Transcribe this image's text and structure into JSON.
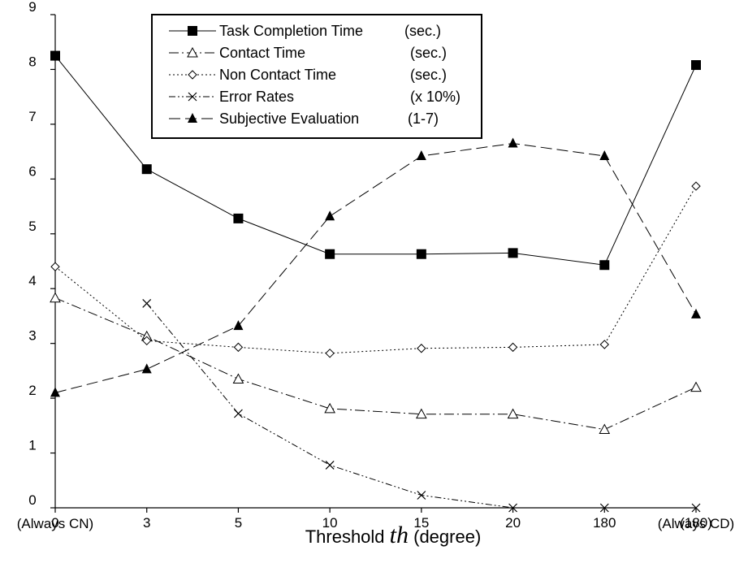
{
  "chart_data": {
    "type": "line",
    "categories": [
      "0",
      "3",
      "5",
      "10",
      "15",
      "20",
      "180",
      "(180)"
    ],
    "category_notes": {
      "first": "(Always CN)",
      "last": "(Always CD)"
    },
    "xlabel": {
      "prefix": "Threshold ",
      "variable": "th",
      "suffix": " (degree)"
    },
    "ylabel": "",
    "ylim": [
      0,
      9
    ],
    "yticks": [
      0,
      1,
      2,
      3,
      4,
      5,
      6,
      7,
      8,
      9
    ],
    "grid": false,
    "legend_position": "top-center",
    "series": [
      {
        "name": "Task Completion Time",
        "unit": "(sec.)",
        "marker": "filled-square",
        "dash": "solid",
        "values": [
          8.25,
          6.18,
          5.28,
          4.63,
          4.63,
          4.65,
          4.43,
          8.08
        ]
      },
      {
        "name": "Contact Time",
        "unit": "(sec.)",
        "marker": "open-triangle",
        "dash": "dash-dot",
        "values": [
          3.83,
          3.13,
          2.35,
          1.81,
          1.71,
          1.71,
          1.43,
          2.2
        ]
      },
      {
        "name": "Non Contact Time",
        "unit": "(sec.)",
        "marker": "open-diamond",
        "dash": "dotted",
        "values": [
          4.4,
          3.05,
          2.93,
          2.82,
          2.91,
          2.93,
          2.98,
          5.87
        ]
      },
      {
        "name": "Error Rates",
        "unit": "(x 10%)",
        "marker": "x-cross",
        "dash": "dash-dot-dot",
        "values": [
          null,
          3.73,
          1.72,
          0.78,
          0.23,
          0.0,
          0.0,
          0.0
        ]
      },
      {
        "name": "Subjective Evaluation",
        "unit": "(1-7)",
        "marker": "filled-triangle",
        "dash": "long-dash",
        "values": [
          2.1,
          2.53,
          3.32,
          5.32,
          6.42,
          6.65,
          6.42,
          3.53
        ]
      }
    ]
  }
}
